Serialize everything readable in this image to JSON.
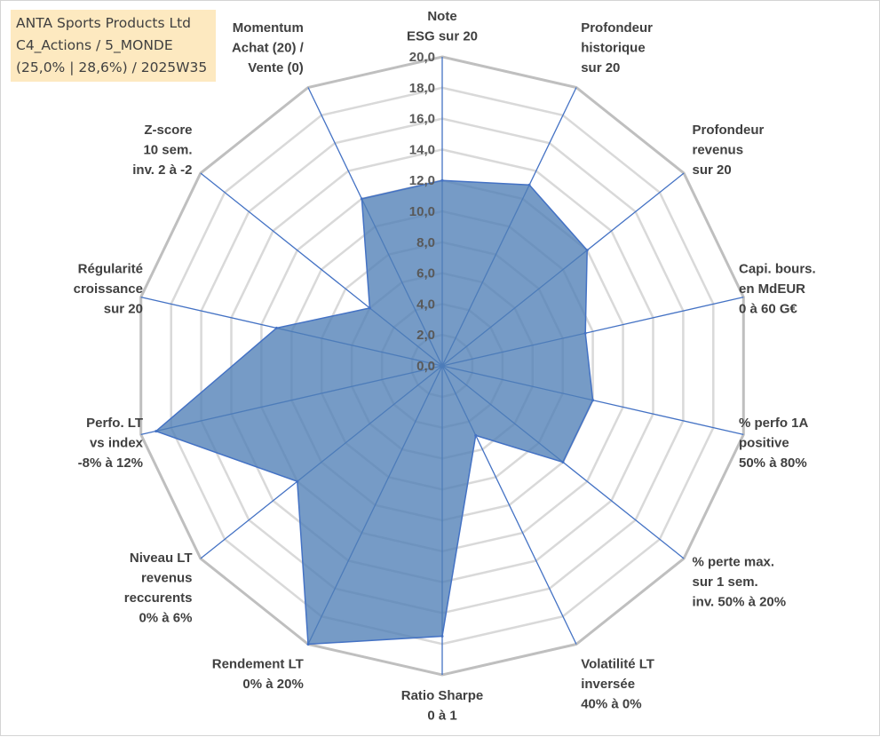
{
  "info_box": {
    "line1": "ANTA Sports Products Ltd",
    "line2": "C4_Actions / 5_MONDE",
    "line3": "(25,0% | 28,6%) / 2025W35"
  },
  "chart_data": {
    "type": "radar",
    "title": "",
    "rmin": 0,
    "rmax": 20,
    "ticks": [
      "0,0",
      "2,0",
      "4,0",
      "6,0",
      "8,0",
      "10,0",
      "12,0",
      "14,0",
      "16,0",
      "18,0",
      "20,0"
    ],
    "grid": true,
    "axes": [
      {
        "label": [
          "Note",
          "ESG sur 20"
        ],
        "value": 12.0
      },
      {
        "label": [
          "Profondeur",
          "historique",
          "sur 20"
        ],
        "value": 13.0
      },
      {
        "label": [
          "Profondeur",
          "revenus",
          "sur 20"
        ],
        "value": 12.0
      },
      {
        "label": [
          "Capi. bours.",
          "en MdEUR",
          "0 à 60 G€"
        ],
        "value": 9.5
      },
      {
        "label": [
          "% perfo 1A",
          "positive",
          "50% à 80%"
        ],
        "value": 10.0
      },
      {
        "label": [
          "% perte max.",
          "sur 1 sem.",
          "inv. 50% à 20%"
        ],
        "value": 10.0
      },
      {
        "label": [
          "Volatilité LT",
          "inversée",
          "40% à 0%"
        ],
        "value": 5.0
      },
      {
        "label": [
          "Ratio Sharpe",
          "0 à 1"
        ],
        "value": 17.5
      },
      {
        "label": [
          "Rendement LT",
          "0% à 20%"
        ],
        "value": 20.0
      },
      {
        "label": [
          "Niveau LT",
          "revenus",
          "reccurents",
          "0% à 6%"
        ],
        "value": 12.0
      },
      {
        "label": [
          "Perfo. LT",
          "vs index",
          "-8% à 12%"
        ],
        "value": 19.0
      },
      {
        "label": [
          "Régularité",
          "croissance",
          "sur 20"
        ],
        "value": 11.0
      },
      {
        "label": [
          "Z-score",
          "10 sem.",
          "inv. 2 à -2"
        ],
        "value": 6.0
      },
      {
        "label": [
          "Momentum",
          "Achat (20) /",
          "Vente (0)"
        ],
        "value": 12.0
      }
    ],
    "colors": {
      "fill": "#4f7fb6",
      "fill_opacity": "0.78",
      "spoke": "#4472c4",
      "outer_grid": "#bfbfbf",
      "inner_grid": "#d9d9d9"
    }
  }
}
